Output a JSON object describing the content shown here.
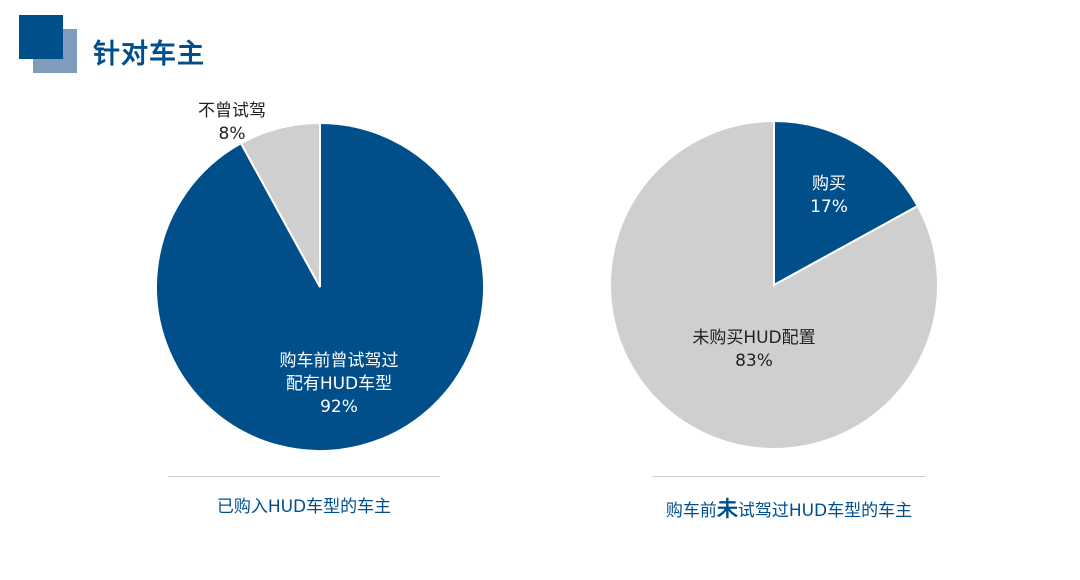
{
  "page": {
    "title": "针对车主"
  },
  "colors": {
    "primary": "#004f8b",
    "light": "#d0cfcf",
    "deco": "#7f9cbc"
  },
  "chart_data": [
    {
      "type": "pie",
      "caption": "已购入HUD车型的车主",
      "slices": [
        {
          "name": "购车前曾试驾过配有HUD车型",
          "lines": [
            "购车前曾试驾过",
            "配有HUD车型"
          ],
          "pct_label": "92%",
          "value": 92,
          "color": "#004f8b"
        },
        {
          "name": "不曾试驾",
          "lines": [
            "不曾试驾"
          ],
          "pct_label": "8%",
          "value": 8,
          "color": "#d0cfcf"
        }
      ]
    },
    {
      "type": "pie",
      "caption_parts": {
        "before": "购车前",
        "emphasis": "未",
        "after": "试驾过HUD车型的车主"
      },
      "slices": [
        {
          "name": "购买",
          "lines": [
            "购买"
          ],
          "pct_label": "17%",
          "value": 17,
          "color": "#004f8b"
        },
        {
          "name": "未购买HUD配置",
          "lines": [
            "未购买HUD配置"
          ],
          "pct_label": "83%",
          "value": 83,
          "color": "#d0cfcf"
        }
      ]
    }
  ]
}
